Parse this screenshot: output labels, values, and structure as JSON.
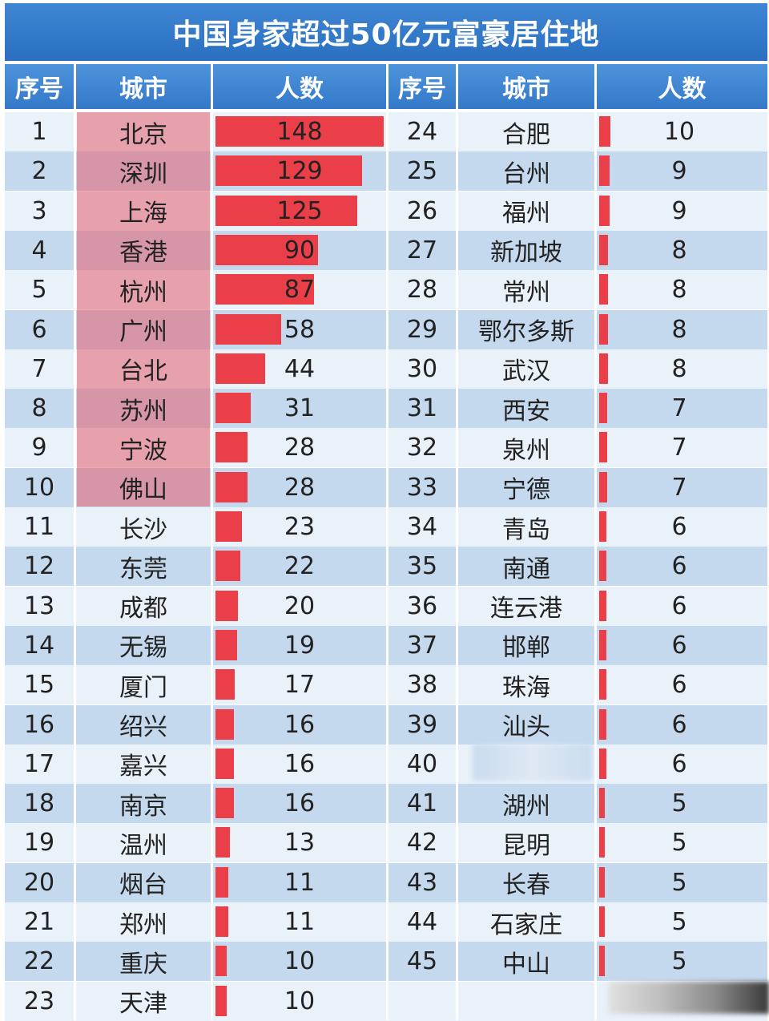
{
  "chart_data": {
    "type": "table",
    "title": "中国身家超过50亿元富豪居住地",
    "columns": [
      "序号",
      "城市",
      "人数"
    ],
    "rows": [
      {
        "rank": "1",
        "city": "北京",
        "count": 148
      },
      {
        "rank": "2",
        "city": "深圳",
        "count": 129
      },
      {
        "rank": "3",
        "city": "上海",
        "count": 125
      },
      {
        "rank": "4",
        "city": "香港",
        "count": 90
      },
      {
        "rank": "5",
        "city": "杭州",
        "count": 87
      },
      {
        "rank": "6",
        "city": "广州",
        "count": 58
      },
      {
        "rank": "7",
        "city": "台北",
        "count": 44
      },
      {
        "rank": "8",
        "city": "苏州",
        "count": 31
      },
      {
        "rank": "9",
        "city": "宁波",
        "count": 28
      },
      {
        "rank": "10",
        "city": "佛山",
        "count": 28
      },
      {
        "rank": "11",
        "city": "长沙",
        "count": 23
      },
      {
        "rank": "12",
        "city": "东莞",
        "count": 22
      },
      {
        "rank": "13",
        "city": "成都",
        "count": 20
      },
      {
        "rank": "14",
        "city": "无锡",
        "count": 19
      },
      {
        "rank": "15",
        "city": "厦门",
        "count": 17
      },
      {
        "rank": "16",
        "city": "绍兴",
        "count": 16
      },
      {
        "rank": "17",
        "city": "嘉兴",
        "count": 16
      },
      {
        "rank": "18",
        "city": "南京",
        "count": 16
      },
      {
        "rank": "19",
        "city": "温州",
        "count": 13
      },
      {
        "rank": "20",
        "city": "烟台",
        "count": 11
      },
      {
        "rank": "21",
        "city": "郑州",
        "count": 11
      },
      {
        "rank": "22",
        "city": "重庆",
        "count": 10
      },
      {
        "rank": "23",
        "city": "天津",
        "count": 10
      },
      {
        "rank": "24",
        "city": "合肥",
        "count": 10
      },
      {
        "rank": "25",
        "city": "台州",
        "count": 9
      },
      {
        "rank": "26",
        "city": "福州",
        "count": 9
      },
      {
        "rank": "27",
        "city": "新加坡",
        "count": 8
      },
      {
        "rank": "28",
        "city": "常州",
        "count": 8
      },
      {
        "rank": "29",
        "city": "鄂尔多斯",
        "count": 8
      },
      {
        "rank": "30",
        "city": "武汉",
        "count": 8
      },
      {
        "rank": "31",
        "city": "西安",
        "count": 7
      },
      {
        "rank": "32",
        "city": "泉州",
        "count": 7
      },
      {
        "rank": "33",
        "city": "宁德",
        "count": 7
      },
      {
        "rank": "34",
        "city": "青岛",
        "count": 6
      },
      {
        "rank": "35",
        "city": "南通",
        "count": 6
      },
      {
        "rank": "36",
        "city": "连云港",
        "count": 6
      },
      {
        "rank": "37",
        "city": "邯郸",
        "count": 6
      },
      {
        "rank": "38",
        "city": "珠海",
        "count": 6
      },
      {
        "rank": "39",
        "city": "汕头",
        "count": 6
      },
      {
        "rank": "40",
        "city": "",
        "count": 6
      },
      {
        "rank": "41",
        "city": "湖州",
        "count": 5
      },
      {
        "rank": "42",
        "city": "昆明",
        "count": 5
      },
      {
        "rank": "43",
        "city": "长春",
        "count": 5
      },
      {
        "rank": "44",
        "city": "石家庄",
        "count": 5
      },
      {
        "rank": "45",
        "city": "中山",
        "count": 5
      }
    ],
    "bar_color": "#ea3f48",
    "highlight_color": "#e65f6e",
    "header_color": "#3479c8"
  }
}
